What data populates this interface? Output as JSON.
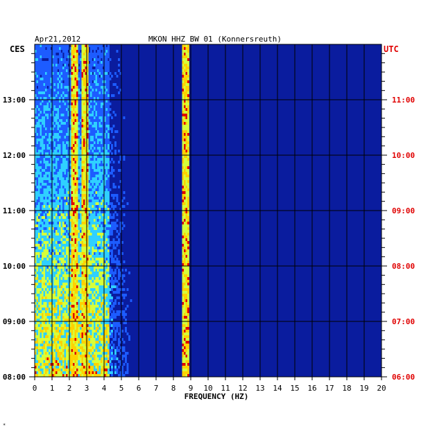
{
  "header": {
    "date": "Apr21,2012",
    "station": "MKON HHZ BW 01 (Konnersreuth)"
  },
  "colors": {
    "background": "#ffffff",
    "plot_base": "#0a1c9e",
    "local_axis_text": "#000000",
    "utc_axis_text": "#e00000",
    "grid": "#000000"
  },
  "footer_mark": "*",
  "chart_data": {
    "type": "heatmap",
    "title": "MKON HHZ BW 01 (Konnersreuth)",
    "date_label": "Apr21,2012",
    "xlabel": "FREQUENCY (HZ)",
    "xlim": [
      0,
      20
    ],
    "x_ticks": [
      0,
      1,
      2,
      3,
      4,
      5,
      6,
      7,
      8,
      9,
      10,
      11,
      12,
      13,
      14,
      15,
      16,
      17,
      18,
      19,
      20
    ],
    "left_axis": {
      "label": "CES",
      "range": [
        "08:00",
        "14:00"
      ],
      "ticks": [
        "08:00",
        "09:00",
        "10:00",
        "11:00",
        "12:00",
        "13:00"
      ]
    },
    "right_axis": {
      "label": "UTC",
      "range": [
        "06:00",
        "12:00"
      ],
      "ticks": [
        "06:00",
        "07:00",
        "08:00",
        "09:00",
        "10:00",
        "11:00"
      ]
    },
    "grid": true,
    "minor_ticks_per_hour": 6,
    "colormap": [
      "#0a1c9e",
      "#1d5cff",
      "#2fd0ff",
      "#d6ff3a",
      "#ffd200",
      "#e00000"
    ],
    "dominant_bands_hz": [
      2.3,
      2.9,
      8.7
    ]
  }
}
